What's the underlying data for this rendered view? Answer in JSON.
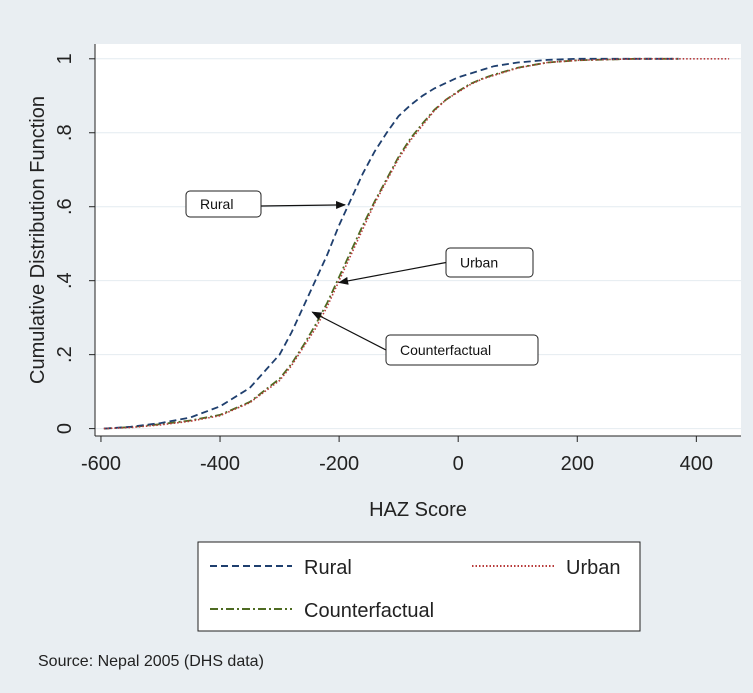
{
  "chart_data": {
    "type": "line",
    "xlabel": "HAZ Score",
    "ylabel": "Cumulative Distribution Function",
    "xlim": [
      -610,
      475
    ],
    "ylim": [
      -0.02,
      1.04
    ],
    "x_ticks": [
      {
        "value": -600,
        "label": "-600"
      },
      {
        "value": -400,
        "label": "-400"
      },
      {
        "value": -200,
        "label": "-200"
      },
      {
        "value": 0,
        "label": "0"
      },
      {
        "value": 200,
        "label": "200"
      },
      {
        "value": 400,
        "label": "400"
      }
    ],
    "y_ticks": [
      {
        "value": 0,
        "label": "0"
      },
      {
        "value": 0.2,
        "label": ".2"
      },
      {
        "value": 0.4,
        "label": ".4"
      },
      {
        "value": 0.6,
        "label": ".6"
      },
      {
        "value": 0.8,
        "label": ".8"
      },
      {
        "value": 1,
        "label": "1"
      }
    ],
    "grid": "horizontal",
    "legend_position": "bottom",
    "series": [
      {
        "name": "Rural",
        "color": "#1f3f6e",
        "style": "dashed",
        "x": [
          -595,
          -550,
          -500,
          -450,
          -400,
          -350,
          -300,
          -280,
          -260,
          -240,
          -220,
          -200,
          -180,
          -160,
          -140,
          -120,
          -100,
          -80,
          -60,
          -40,
          -20,
          0,
          20,
          40,
          60,
          100,
          150,
          200,
          300,
          370
        ],
        "y": [
          0.0,
          0.005,
          0.015,
          0.03,
          0.06,
          0.11,
          0.2,
          0.26,
          0.33,
          0.4,
          0.47,
          0.55,
          0.62,
          0.69,
          0.75,
          0.8,
          0.845,
          0.875,
          0.9,
          0.92,
          0.935,
          0.95,
          0.96,
          0.97,
          0.98,
          0.99,
          0.997,
          1.0,
          1.0,
          1.0
        ]
      },
      {
        "name": "Urban",
        "color": "#b73a3a",
        "style": "dotted",
        "x": [
          -595,
          -550,
          -500,
          -450,
          -400,
          -350,
          -300,
          -280,
          -260,
          -240,
          -220,
          -200,
          -180,
          -160,
          -140,
          -120,
          -100,
          -80,
          -60,
          -40,
          -20,
          0,
          20,
          40,
          60,
          100,
          150,
          200,
          300,
          400,
          455
        ],
        "y": [
          0.0,
          0.003,
          0.01,
          0.02,
          0.035,
          0.07,
          0.13,
          0.17,
          0.22,
          0.27,
          0.33,
          0.4,
          0.47,
          0.54,
          0.61,
          0.67,
          0.73,
          0.78,
          0.82,
          0.86,
          0.89,
          0.91,
          0.93,
          0.945,
          0.955,
          0.975,
          0.99,
          0.996,
          1.0,
          1.0,
          1.0
        ]
      },
      {
        "name": "Counterfactual",
        "color": "#4e6b22",
        "style": "dashdot",
        "x": [
          -595,
          -550,
          -500,
          -450,
          -400,
          -350,
          -300,
          -280,
          -260,
          -240,
          -220,
          -200,
          -180,
          -160,
          -140,
          -120,
          -100,
          -80,
          -60,
          -40,
          -20,
          0,
          20,
          40,
          60,
          100,
          150,
          200,
          300,
          370
        ],
        "y": [
          0.0,
          0.004,
          0.012,
          0.022,
          0.037,
          0.072,
          0.135,
          0.175,
          0.225,
          0.28,
          0.34,
          0.41,
          0.48,
          0.55,
          0.615,
          0.675,
          0.735,
          0.785,
          0.825,
          0.862,
          0.89,
          0.912,
          0.932,
          0.946,
          0.957,
          0.976,
          0.99,
          0.996,
          1.0,
          1.0
        ]
      }
    ],
    "annotations": [
      {
        "text": "Rural",
        "point": [
          -190,
          0.605
        ]
      },
      {
        "text": "Urban",
        "point": [
          -200,
          0.395
        ]
      },
      {
        "text": "Counterfactual",
        "point": [
          -245,
          0.315
        ]
      }
    ],
    "legend": [
      {
        "label": "Rural",
        "series": "Rural"
      },
      {
        "label": "Urban",
        "series": "Urban"
      },
      {
        "label": "Counterfactual",
        "series": "Counterfactual"
      }
    ],
    "note": "Source: Nepal 2005 (DHS data)"
  }
}
